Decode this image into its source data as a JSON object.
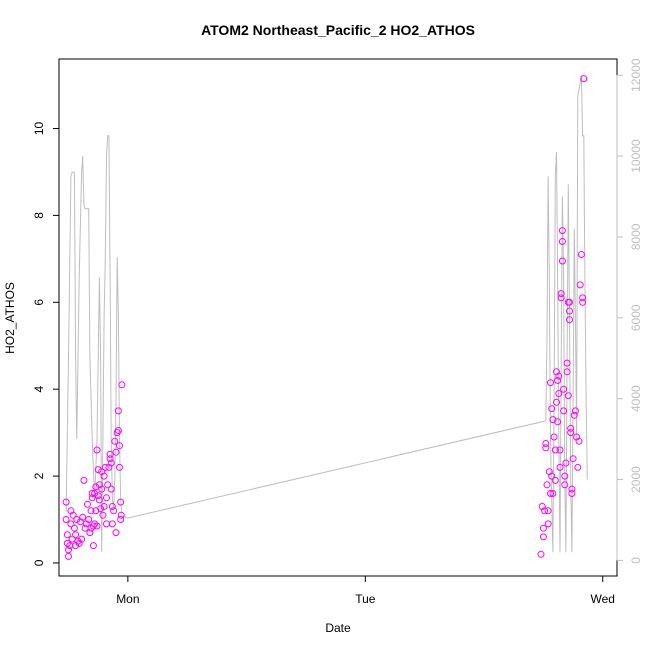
{
  "chart_data": {
    "type": "scatter",
    "title": "ATOM2 Northeast_Pacific_2 HO2_ATHOS",
    "xlabel": "Date",
    "ylabel": "HO2_ATHOS",
    "x_ticks": [
      {
        "label": "Mon",
        "value": 0
      },
      {
        "label": "Tue",
        "value": 1
      },
      {
        "label": "Wed",
        "value": 2
      }
    ],
    "xlim": [
      -0.29,
      2.06
    ],
    "y_ticks": [
      0,
      2,
      4,
      6,
      8,
      10
    ],
    "ylim": [
      -0.3,
      11.6
    ],
    "y2_ticks": [
      0,
      2000,
      4000,
      6000,
      8000,
      10000,
      12000
    ],
    "y2lim": [
      -385,
      12400
    ],
    "colors": {
      "points": "#ff00ff",
      "altitude": "#bebebe",
      "axis": "#000000",
      "y2_axis": "#bfbfbf"
    },
    "series": [
      {
        "role": "points",
        "points": [
          [
            -0.26,
            1.4
          ],
          [
            -0.26,
            1.0
          ],
          [
            -0.255,
            0.65
          ],
          [
            -0.255,
            0.45
          ],
          [
            -0.25,
            0.3
          ],
          [
            -0.25,
            0.15
          ],
          [
            -0.245,
            0.4
          ],
          [
            -0.24,
            0.9
          ],
          [
            -0.24,
            1.2
          ],
          [
            -0.235,
            0.55
          ],
          [
            -0.23,
            1.1
          ],
          [
            -0.225,
            0.8
          ],
          [
            -0.22,
            0.65
          ],
          [
            -0.22,
            0.4
          ],
          [
            -0.215,
            1.0
          ],
          [
            -0.21,
            0.5
          ],
          [
            -0.205,
            0.45
          ],
          [
            -0.2,
            0.95
          ],
          [
            -0.195,
            0.55
          ],
          [
            -0.19,
            1.05
          ],
          [
            -0.185,
            1.9
          ],
          [
            -0.18,
            0.8
          ],
          [
            -0.175,
            0.9
          ],
          [
            -0.17,
            1.35
          ],
          [
            -0.165,
            1.0
          ],
          [
            -0.16,
            0.7
          ],
          [
            -0.155,
            0.8
          ],
          [
            -0.155,
            1.2
          ],
          [
            -0.15,
            1.5
          ],
          [
            -0.15,
            1.6
          ],
          [
            -0.145,
            0.85
          ],
          [
            -0.145,
            0.4
          ],
          [
            -0.14,
            0.9
          ],
          [
            -0.14,
            1.6
          ],
          [
            -0.135,
            1.75
          ],
          [
            -0.135,
            1.2
          ],
          [
            -0.13,
            0.85
          ],
          [
            -0.13,
            2.6
          ],
          [
            -0.125,
            2.15
          ],
          [
            -0.125,
            1.55
          ],
          [
            -0.12,
            1.8
          ],
          [
            -0.12,
            1.45
          ],
          [
            -0.115,
            1.25
          ],
          [
            -0.11,
            2.1
          ],
          [
            -0.11,
            1.7
          ],
          [
            -0.105,
            1.1
          ],
          [
            -0.1,
            2.0
          ],
          [
            -0.1,
            1.3
          ],
          [
            -0.095,
            2.2
          ],
          [
            -0.09,
            1.5
          ],
          [
            -0.09,
            0.9
          ],
          [
            -0.085,
            1.8
          ],
          [
            -0.08,
            2.2
          ],
          [
            -0.075,
            2.4
          ],
          [
            -0.075,
            2.5
          ],
          [
            -0.07,
            2.3
          ],
          [
            -0.07,
            1.7
          ],
          [
            -0.065,
            1.3
          ],
          [
            -0.065,
            0.9
          ],
          [
            -0.06,
            1.2
          ],
          [
            -0.055,
            2.8
          ],
          [
            -0.05,
            2.55
          ],
          [
            -0.05,
            0.7
          ],
          [
            -0.045,
            3.0
          ],
          [
            -0.04,
            3.05
          ],
          [
            -0.04,
            3.5
          ],
          [
            -0.035,
            2.7
          ],
          [
            -0.035,
            2.2
          ],
          [
            -0.03,
            1.4
          ],
          [
            -0.03,
            1.0
          ],
          [
            -0.028,
            1.1
          ],
          [
            -0.025,
            4.1
          ],
          [
            1.74,
            0.2
          ],
          [
            1.745,
            1.3
          ],
          [
            1.75,
            0.8
          ],
          [
            1.75,
            0.6
          ],
          [
            1.755,
            1.2
          ],
          [
            1.76,
            2.75
          ],
          [
            1.76,
            2.65
          ],
          [
            1.765,
            1.8
          ],
          [
            1.77,
            1.2
          ],
          [
            1.77,
            0.9
          ],
          [
            1.775,
            2.1
          ],
          [
            1.78,
            1.6
          ],
          [
            1.78,
            4.15
          ],
          [
            1.785,
            3.55
          ],
          [
            1.785,
            2.0
          ],
          [
            1.79,
            3.3
          ],
          [
            1.79,
            1.6
          ],
          [
            1.795,
            2.9
          ],
          [
            1.8,
            2.6
          ],
          [
            1.8,
            1.9
          ],
          [
            1.805,
            3.7
          ],
          [
            1.805,
            4.4
          ],
          [
            1.81,
            4.2
          ],
          [
            1.81,
            3.25
          ],
          [
            1.815,
            3.9
          ],
          [
            1.815,
            4.3
          ],
          [
            1.82,
            2.6
          ],
          [
            1.82,
            2.2
          ],
          [
            1.825,
            6.1
          ],
          [
            1.825,
            6.2
          ],
          [
            1.83,
            7.65
          ],
          [
            1.83,
            7.4
          ],
          [
            1.83,
            6.95
          ],
          [
            1.835,
            4.0
          ],
          [
            1.835,
            3.5
          ],
          [
            1.84,
            1.8
          ],
          [
            1.84,
            2.0
          ],
          [
            1.845,
            2.3
          ],
          [
            1.85,
            4.6
          ],
          [
            1.85,
            4.4
          ],
          [
            1.855,
            3.85
          ],
          [
            1.855,
            6.0
          ],
          [
            1.86,
            5.8
          ],
          [
            1.86,
            5.6
          ],
          [
            1.86,
            6.0
          ],
          [
            1.865,
            3.1
          ],
          [
            1.865,
            3.0
          ],
          [
            1.87,
            1.7
          ],
          [
            1.87,
            1.6
          ],
          [
            1.875,
            2.4
          ],
          [
            1.88,
            3.4
          ],
          [
            1.885,
            3.5
          ],
          [
            1.89,
            2.9
          ],
          [
            1.895,
            2.2
          ],
          [
            1.9,
            2.8
          ],
          [
            1.905,
            6.4
          ],
          [
            1.91,
            7.1
          ],
          [
            1.915,
            6.0
          ],
          [
            1.915,
            6.1
          ],
          [
            1.92,
            11.15
          ]
        ]
      },
      {
        "role": "altitude",
        "points": [
          [
            -0.26,
            1200
          ],
          [
            -0.25,
            5000
          ],
          [
            -0.24,
            9500
          ],
          [
            -0.235,
            9600
          ],
          [
            -0.225,
            9600
          ],
          [
            -0.22,
            5000
          ],
          [
            -0.215,
            3000
          ],
          [
            -0.205,
            7000
          ],
          [
            -0.195,
            9600
          ],
          [
            -0.19,
            10000
          ],
          [
            -0.185,
            8800
          ],
          [
            -0.18,
            8700
          ],
          [
            -0.165,
            8700
          ],
          [
            -0.16,
            5000
          ],
          [
            -0.15,
            3000
          ],
          [
            -0.14,
            1500
          ],
          [
            -0.13,
            3000
          ],
          [
            -0.125,
            5000
          ],
          [
            -0.12,
            7000
          ],
          [
            -0.115,
            5000
          ],
          [
            -0.11,
            200
          ],
          [
            -0.105,
            3000
          ],
          [
            -0.1,
            6000
          ],
          [
            -0.095,
            7500
          ],
          [
            -0.09,
            10000
          ],
          [
            -0.085,
            10500
          ],
          [
            -0.08,
            10500
          ],
          [
            -0.075,
            7000
          ],
          [
            -0.07,
            3000
          ],
          [
            -0.065,
            1500
          ],
          [
            -0.06,
            1300
          ],
          [
            -0.055,
            2000
          ],
          [
            -0.05,
            4000
          ],
          [
            -0.045,
            7500
          ],
          [
            -0.04,
            6000
          ],
          [
            -0.035,
            3000
          ],
          [
            -0.03,
            1500
          ],
          [
            -0.025,
            1100
          ],
          [
            0,
            1050
          ],
          [
            1.76,
            3450
          ],
          [
            1.765,
            5500
          ],
          [
            1.77,
            9500
          ],
          [
            1.775,
            7000
          ],
          [
            1.78,
            3000
          ],
          [
            1.785,
            1500
          ],
          [
            1.79,
            200
          ],
          [
            1.795,
            4000
          ],
          [
            1.8,
            9500
          ],
          [
            1.805,
            10100
          ],
          [
            1.81,
            7000
          ],
          [
            1.815,
            3000
          ],
          [
            1.82,
            200
          ],
          [
            1.825,
            5000
          ],
          [
            1.83,
            9000
          ],
          [
            1.835,
            7000
          ],
          [
            1.84,
            2000
          ],
          [
            1.845,
            200
          ],
          [
            1.85,
            5000
          ],
          [
            1.855,
            9300
          ],
          [
            1.86,
            6000
          ],
          [
            1.865,
            2000
          ],
          [
            1.87,
            200
          ],
          [
            1.875,
            4000
          ],
          [
            1.88,
            8200
          ],
          [
            1.885,
            6000
          ],
          [
            1.89,
            3000
          ],
          [
            1.895,
            11500
          ],
          [
            1.905,
            11800
          ],
          [
            1.91,
            12000
          ],
          [
            1.915,
            10500
          ],
          [
            1.92,
            10500
          ],
          [
            1.925,
            7000
          ],
          [
            1.93,
            4000
          ],
          [
            1.935,
            2000
          ]
        ]
      }
    ],
    "grid": false,
    "legend": "none"
  }
}
